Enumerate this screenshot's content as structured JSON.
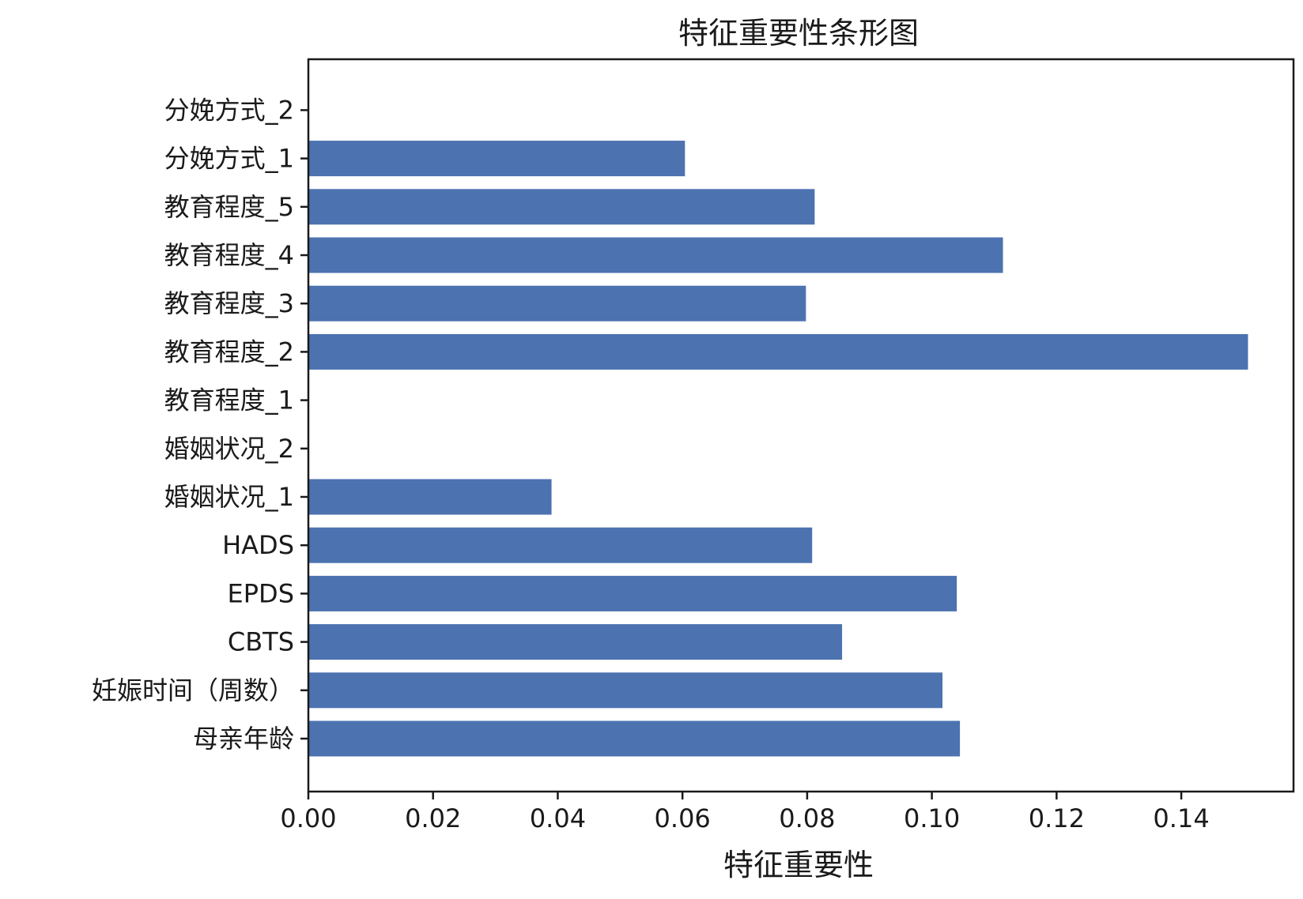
{
  "chart_data": {
    "type": "bar",
    "orientation": "horizontal",
    "title": "特征重要性条形图",
    "xlabel": "特征重要性",
    "ylabel": "",
    "categories": [
      "母亲年龄",
      "妊娠时间（周数）",
      "CBTS",
      "EPDS",
      "HADS",
      "婚姻状况_1",
      "婚姻状况_2",
      "教育程度_1",
      "教育程度_2",
      "教育程度_3",
      "教育程度_4",
      "教育程度_5",
      "分娩方式_1",
      "分娩方式_2"
    ],
    "values": [
      0.1045,
      0.1017,
      0.0856,
      0.104,
      0.0808,
      0.039,
      0.0,
      0.0,
      0.1507,
      0.0798,
      0.1114,
      0.0812,
      0.0604,
      0.0
    ],
    "xlim": [
      0,
      0.158
    ],
    "xticks": [
      0.0,
      0.02,
      0.04,
      0.06,
      0.08,
      0.1,
      0.12,
      0.14
    ],
    "xtick_labels": [
      "0.00",
      "0.02",
      "0.04",
      "0.06",
      "0.08",
      "0.10",
      "0.12",
      "0.14"
    ],
    "grid": false,
    "bar_color": "#4c72b0"
  }
}
